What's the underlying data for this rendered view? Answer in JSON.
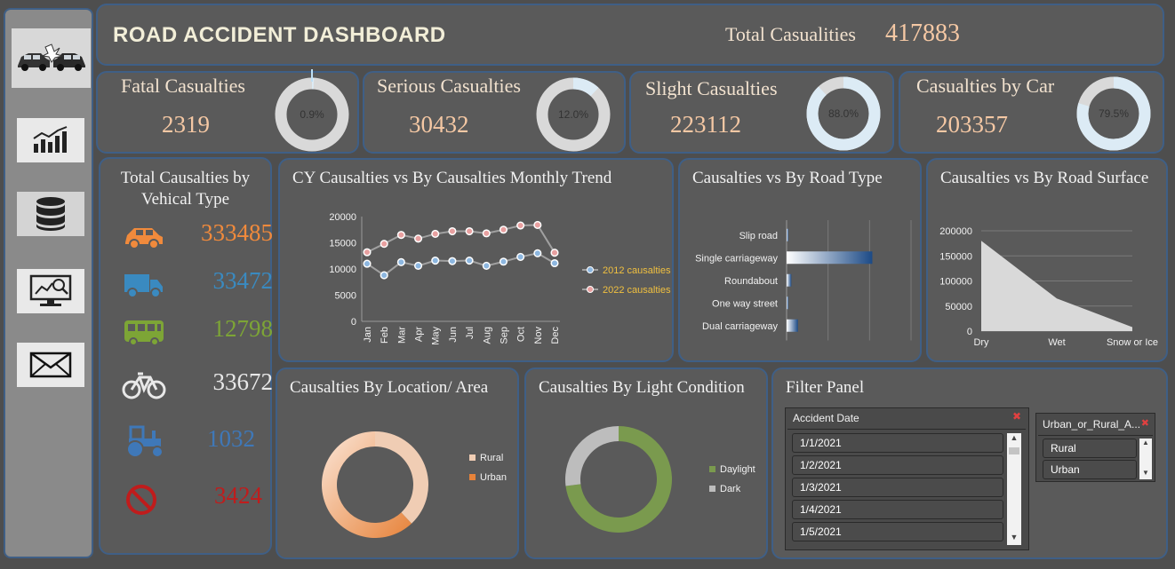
{
  "header": {
    "title": "ROAD ACCIDENT DASHBOARD",
    "total_label": "Total Casualities",
    "total_value": "417883"
  },
  "sidebar": {
    "items": [
      "crash-cars-icon",
      "trend-chart-icon",
      "database-icon",
      "analytics-monitor-icon",
      "mail-icon"
    ]
  },
  "kpis": [
    {
      "label": "Fatal Casualties",
      "value": "2319",
      "pct": 0.9,
      "pct_label": "0.9%"
    },
    {
      "label": "Serious Casualties",
      "value": "30432",
      "pct": 12.0,
      "pct_label": "12.0%"
    },
    {
      "label": "Slight  Casualties",
      "value": "223112",
      "pct": 88.0,
      "pct_label": "88.0%"
    },
    {
      "label": "Casualties by Car",
      "value": "203357",
      "pct": 79.5,
      "pct_label": "79.5%"
    }
  ],
  "vehicle": {
    "title_line1": "Total Causalties by",
    "title_line2": "Vehical Type",
    "items": [
      {
        "icon": "car-icon",
        "value": "333485",
        "color": "#f08a3c"
      },
      {
        "icon": "truck-icon",
        "value": "33472",
        "color": "#3a8ac0"
      },
      {
        "icon": "bus-icon",
        "value": "12798",
        "color": "#7da536"
      },
      {
        "icon": "bicycle-icon",
        "value": "33672",
        "color": "#e8e8e8"
      },
      {
        "icon": "tractor-icon",
        "value": "1032",
        "color": "#3f78b8"
      },
      {
        "icon": "no-entry-icon",
        "value": "3424",
        "color": "#c01c1c"
      }
    ]
  },
  "chart_data": [
    {
      "type": "line",
      "title": "CY Causalties vs By Causalties Monthly Trend",
      "categories": [
        "Jan",
        "Feb",
        "Mar",
        "Apr",
        "May",
        "Jun",
        "Jul",
        "Aug",
        "Sep",
        "Oct",
        "Nov",
        "Dec"
      ],
      "series": [
        {
          "name": "2012 causalties",
          "values": [
            11000,
            8800,
            11300,
            10600,
            11600,
            11500,
            11600,
            10600,
            11400,
            12300,
            13000,
            11100
          ],
          "color": "#8db7e0"
        },
        {
          "name": "2022 causalties",
          "values": [
            13200,
            14800,
            16500,
            15800,
            16700,
            17200,
            17200,
            16800,
            17500,
            18300,
            18400,
            13100
          ],
          "color": "#e8a0a0"
        }
      ],
      "yticks": [
        "20000",
        "15000",
        "10000",
        "5000",
        "0"
      ],
      "ylim": [
        0,
        20000
      ]
    },
    {
      "type": "bar",
      "title": "Causalties vs By Road Type",
      "categories": [
        "Slip road",
        "Single carriageway",
        "Roundabout",
        "One way street",
        "Dual carriageway"
      ],
      "values": [
        2500,
        310000,
        17000,
        6000,
        41000
      ],
      "xlim": [
        0,
        450000
      ]
    },
    {
      "type": "area",
      "title": "Causalties vs By Road Surface",
      "categories": [
        "Dry",
        "Wet",
        "Snow or Ice"
      ],
      "values": [
        180000,
        65000,
        8000
      ],
      "yticks": [
        "200000",
        "150000",
        "100000",
        "50000",
        "0"
      ],
      "ylim": [
        0,
        200000
      ]
    },
    {
      "type": "pie",
      "title": "Causalties By Location/ Area",
      "labels": [
        "Rural",
        "Urban"
      ],
      "values": [
        38,
        62
      ],
      "colors": [
        "#f0cdb4",
        "#e7833a"
      ]
    },
    {
      "type": "pie",
      "title": "Causalties By Light Condition",
      "labels": [
        "Daylight",
        "Dark"
      ],
      "values": [
        73,
        27
      ],
      "colors": [
        "#7a9a4e",
        "#bdbdbd"
      ]
    }
  ],
  "filter": {
    "title": "Filter Panel",
    "date_header": "Accident Date",
    "dates": [
      "1/1/2021",
      "1/2/2021",
      "1/3/2021",
      "1/4/2021",
      "1/5/2021"
    ],
    "area_header": "Urban_or_Rural_A...",
    "areas": [
      "Rural",
      "Urban"
    ]
  }
}
